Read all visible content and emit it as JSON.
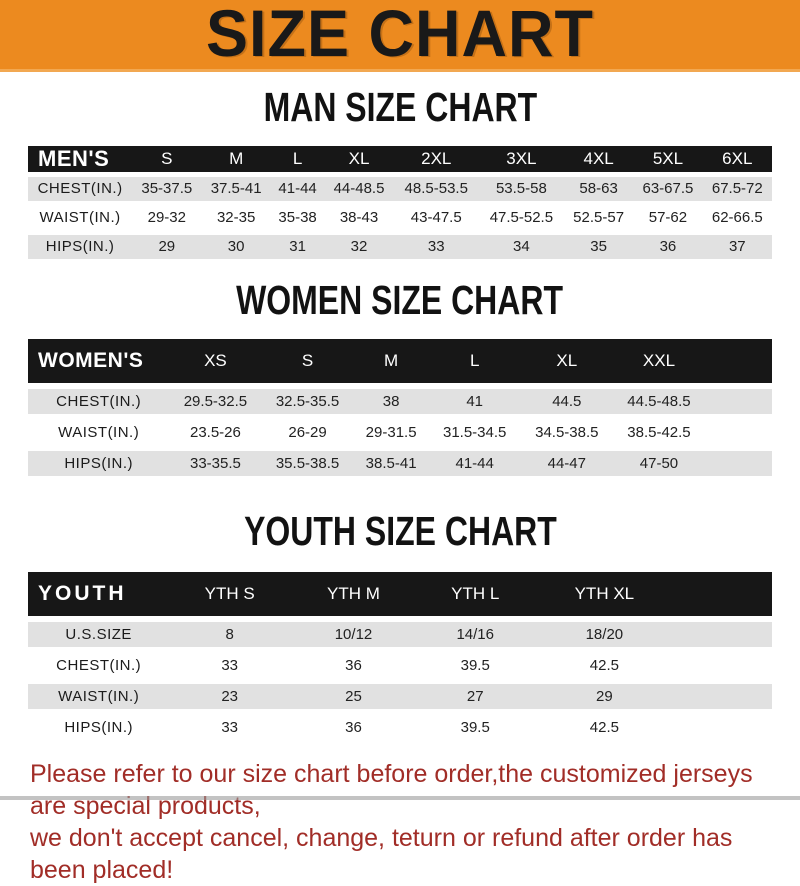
{
  "banner": {
    "title": "SIZE CHART"
  },
  "colors": {
    "banner_bg": "#ec8a1f",
    "header_bar_bg": "#171717",
    "header_bar_text": "#ffffff",
    "row_alt_bg": "#e1e1e1",
    "note_text": "#a12d27"
  },
  "chart_data": [
    {
      "type": "table",
      "title": "MAN SIZE CHART",
      "corner_label": "MEN'S",
      "columns": [
        "S",
        "M",
        "L",
        "XL",
        "2XL",
        "3XL",
        "4XL",
        "5XL",
        "6XL"
      ],
      "rows": [
        {
          "label": "CHEST(IN.)",
          "values": [
            "35-37.5",
            "37.5-41",
            "41-44",
            "44-48.5",
            "48.5-53.5",
            "53.5-58",
            "58-63",
            "63-67.5",
            "67.5-72"
          ]
        },
        {
          "label": "WAIST(IN.)",
          "values": [
            "29-32",
            "32-35",
            "35-38",
            "38-43",
            "43-47.5",
            "47.5-52.5",
            "52.5-57",
            "57-62",
            "62-66.5"
          ]
        },
        {
          "label": "HIPS(IN.)",
          "values": [
            "29",
            "30",
            "31",
            "32",
            "33",
            "34",
            "35",
            "36",
            "37"
          ]
        }
      ]
    },
    {
      "type": "table",
      "title": "WOMEN SIZE CHART",
      "corner_label": "WOMEN'S",
      "columns": [
        "XS",
        "S",
        "M",
        "L",
        "XL",
        "XXL"
      ],
      "rows": [
        {
          "label": "CHEST(IN.)",
          "values": [
            "29.5-32.5",
            "32.5-35.5",
            "38",
            "41",
            "44.5",
            "44.5-48.5"
          ]
        },
        {
          "label": "WAIST(IN.)",
          "values": [
            "23.5-26",
            "26-29",
            "29-31.5",
            "31.5-34.5",
            "34.5-38.5",
            "38.5-42.5"
          ]
        },
        {
          "label": "HIPS(IN.)",
          "values": [
            "33-35.5",
            "35.5-38.5",
            "38.5-41",
            "41-44",
            "44-47",
            "47-50"
          ]
        }
      ]
    },
    {
      "type": "table",
      "title": "YOUTH SIZE CHART",
      "corner_label": "YOUTH",
      "columns": [
        "YTH S",
        "YTH M",
        "YTH L",
        "YTH XL"
      ],
      "rows": [
        {
          "label": "U.S.SIZE",
          "values": [
            "8",
            "10/12",
            "14/16",
            "18/20"
          ]
        },
        {
          "label": "CHEST(IN.)",
          "values": [
            "33",
            "36",
            "39.5",
            "42.5"
          ]
        },
        {
          "label": "WAIST(IN.)",
          "values": [
            "23",
            "25",
            "27",
            "29"
          ]
        },
        {
          "label": "HIPS(IN.)",
          "values": [
            "33",
            "36",
            "39.5",
            "42.5"
          ]
        }
      ]
    }
  ],
  "note": {
    "line1": "Please refer to our size chart before order,the customized jerseys are special products,",
    "line2": "we don't accept cancel, change, teturn or refund after order has been placed!"
  }
}
